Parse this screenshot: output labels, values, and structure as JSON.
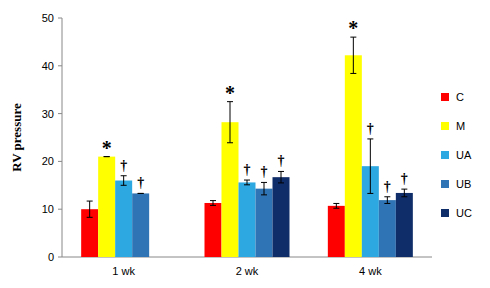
{
  "chart_data": {
    "type": "bar",
    "y_label": "RV pressure",
    "categories": [
      "1 wk",
      "2 wk",
      "4 wk"
    ],
    "ylim": [
      0,
      50
    ],
    "yticks": [
      0,
      10,
      20,
      30,
      40,
      50
    ],
    "legend": "right",
    "series": [
      {
        "name": "C",
        "color": "#ff0000",
        "values": [
          10,
          11.3,
          10.7
        ],
        "errors": [
          1.7,
          0.5,
          0.5
        ]
      },
      {
        "name": "M",
        "color": "#ffff00",
        "values": [
          21,
          28.2,
          42.2
        ],
        "errors": [
          0,
          4.3,
          3.8
        ],
        "annotations": [
          "*",
          "*",
          "*"
        ]
      },
      {
        "name": "UA",
        "color": "#2ea8e0",
        "values": [
          16,
          15.6,
          19
        ],
        "errors": [
          1,
          0.5,
          5.7
        ],
        "annotations": [
          "†",
          "†",
          "†"
        ]
      },
      {
        "name": "UB",
        "color": "#2f75b5",
        "values": [
          13.3,
          14.3,
          11.9
        ],
        "errors": [
          0,
          1.3,
          0.7
        ],
        "annotations": [
          "†",
          "†",
          "†"
        ]
      },
      {
        "name": "UC",
        "color": "#0f2d69",
        "values": [
          null,
          16.7,
          13.4
        ],
        "errors": [
          null,
          1.2,
          0.8
        ],
        "annotations": [
          null,
          "†",
          "†"
        ]
      }
    ]
  }
}
